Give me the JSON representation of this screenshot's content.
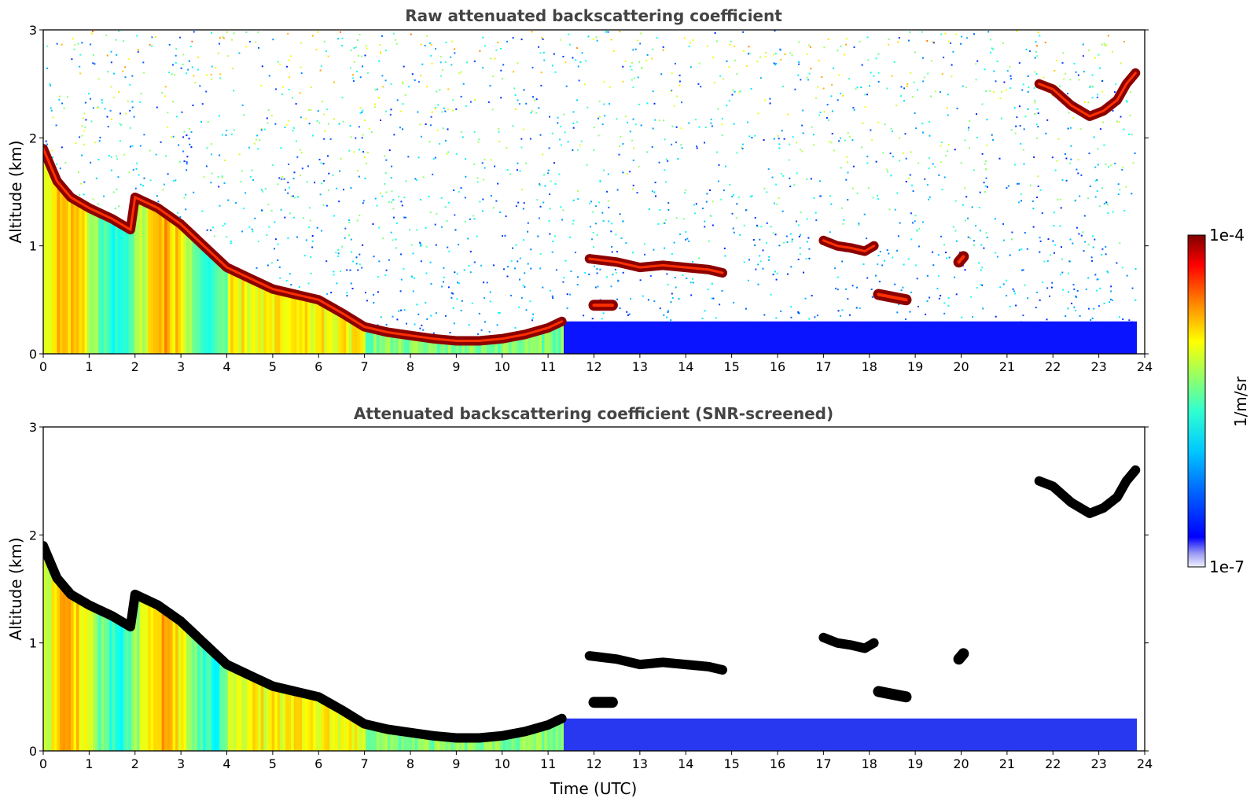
{
  "chart_data": [
    {
      "type": "heatmap",
      "title": "Raw attenuated backscattering coefficient",
      "xlabel": "",
      "ylabel": "Altitude (km)",
      "xlim": [
        0,
        24
      ],
      "ylim": [
        0,
        3
      ],
      "x_ticks": [
        "0",
        "1",
        "2",
        "3",
        "4",
        "5",
        "6",
        "7",
        "8",
        "9",
        "10",
        "11",
        "12",
        "13",
        "14",
        "15",
        "16",
        "17",
        "18",
        "19",
        "20",
        "21",
        "22",
        "23",
        "24"
      ],
      "y_ticks": [
        "0",
        "1",
        "2",
        "3"
      ],
      "colormap": "jet",
      "color_scale": "log",
      "zlim": [
        1e-07,
        0.0001
      ],
      "noise_background": true,
      "features": [
        {
          "kind": "boundary_layer_top",
          "x": [
            0,
            0.3,
            0.6,
            1.0,
            1.5,
            1.9,
            2.0,
            2.5,
            3.0,
            3.5,
            4.0,
            4.5,
            5.0,
            5.5,
            6.0,
            6.5,
            7.0,
            7.5,
            8.0,
            8.5,
            9.0,
            9.5,
            10.0,
            10.5,
            11.0,
            11.3
          ],
          "y": [
            1.9,
            1.6,
            1.45,
            1.35,
            1.25,
            1.15,
            1.45,
            1.35,
            1.2,
            1.0,
            0.8,
            0.7,
            0.6,
            0.55,
            0.5,
            0.38,
            0.25,
            0.2,
            0.17,
            0.14,
            0.12,
            0.12,
            0.14,
            0.18,
            0.24,
            0.3
          ]
        },
        {
          "kind": "cloud_layer",
          "x": [
            11.9,
            12.5,
            13.0,
            13.5,
            14.0,
            14.5,
            14.8
          ],
          "y": [
            0.88,
            0.85,
            0.8,
            0.82,
            0.8,
            0.78,
            0.75
          ]
        },
        {
          "kind": "cloud_layer",
          "x": [
            17.0,
            17.3,
            17.6,
            17.9,
            18.1
          ],
          "y": [
            1.05,
            1.0,
            0.98,
            0.95,
            1.0
          ]
        },
        {
          "kind": "cloud_layer",
          "x": [
            21.7,
            22.0,
            22.4,
            22.8,
            23.1,
            23.4,
            23.6,
            23.8
          ],
          "y": [
            2.5,
            2.45,
            2.3,
            2.2,
            2.25,
            2.35,
            2.5,
            2.6
          ]
        },
        {
          "kind": "cloud_patch",
          "x": [
            19.95,
            20.05
          ],
          "y": [
            0.85,
            0.9
          ]
        },
        {
          "kind": "cloud_patch",
          "x": [
            12.0,
            12.4
          ],
          "y": [
            0.45,
            0.45
          ]
        },
        {
          "kind": "cloud_patch",
          "x": [
            18.2,
            18.8
          ],
          "y": [
            0.55,
            0.5
          ]
        }
      ]
    },
    {
      "type": "heatmap",
      "title": "Attenuated backscattering coefficient (SNR-screened)",
      "xlabel": "Time (UTC)",
      "ylabel": "Altitude (km)",
      "xlim": [
        0,
        24
      ],
      "ylim": [
        0,
        3
      ],
      "x_ticks": [
        "0",
        "1",
        "2",
        "3",
        "4",
        "5",
        "6",
        "7",
        "8",
        "9",
        "10",
        "11",
        "12",
        "13",
        "14",
        "15",
        "16",
        "17",
        "18",
        "19",
        "20",
        "21",
        "22",
        "23",
        "24"
      ],
      "y_ticks": [
        "0",
        "1",
        "2",
        "3"
      ],
      "colormap": "jet",
      "color_scale": "log",
      "zlim": [
        1e-07,
        0.0001
      ],
      "noise_background": false,
      "saturated_color": "#000000"
    }
  ],
  "colorbar": {
    "label": "1/m/sr",
    "top_label": "1e-4",
    "bottom_label": "1e-7"
  },
  "colors": {
    "jet": [
      "#00007f",
      "#0000ff",
      "#007fff",
      "#00ffff",
      "#7fff7f",
      "#ffff00",
      "#ff7f00",
      "#ff0000",
      "#7f0000"
    ]
  }
}
